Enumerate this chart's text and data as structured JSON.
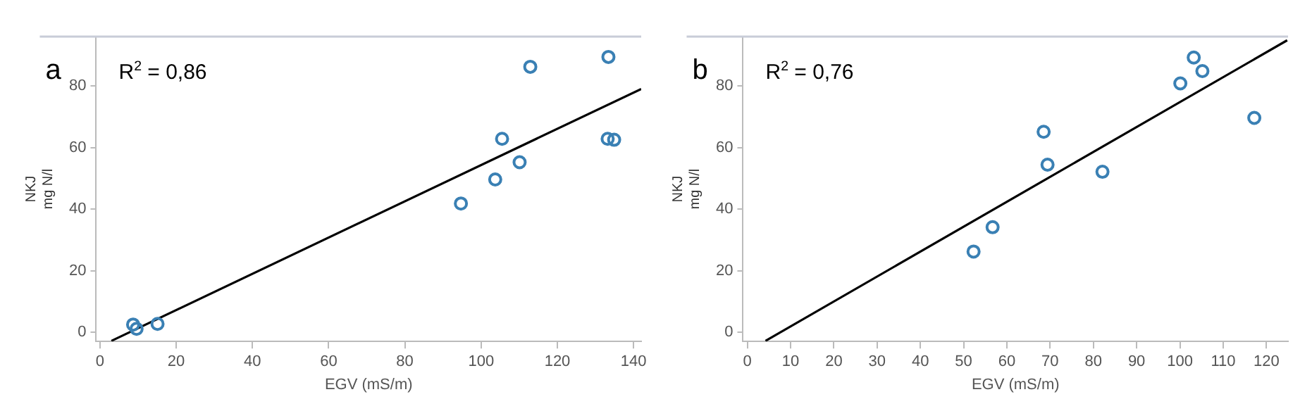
{
  "chart_data": [
    {
      "type": "scatter",
      "annotations": [
        "a",
        "R$^{2}$ = 0,86"
      ],
      "xlabel": "EGV (mS/m)",
      "ylabel": "NKJ\nmg N/l",
      "xlim": [
        -1,
        142
      ],
      "ylim": [
        -3,
        96
      ],
      "xticks": [
        0,
        20,
        40,
        60,
        80,
        100,
        120,
        140
      ],
      "yticks": [
        0,
        20,
        40,
        60,
        80
      ],
      "grid": false,
      "legend": false,
      "series": [
        {
          "marker": "circle",
          "color": "#3a80b4",
          "x": [
            8.7,
            9.6,
            15.1,
            94.7,
            103.7,
            105.5,
            110.1,
            112.9,
            133.4,
            133.2,
            134.9
          ],
          "values": [
            2.5,
            1.1,
            2.7,
            41.8,
            49.6,
            62.8,
            55.2,
            86.2,
            89.4,
            62.8,
            62.5
          ]
        },
        {
          "type": "line",
          "marker": "none",
          "color": "#000000",
          "x": [
            3.0,
            142
          ],
          "values": [
            -2.8,
            79.0
          ]
        }
      ]
    },
    {
      "type": "scatter",
      "annotations": [
        "b",
        "R$^{2}$ = 0,76"
      ],
      "xlabel": "EGV (mS/m)",
      "ylabel": "NKJ\nmg N/l",
      "xlim": [
        -1,
        125
      ],
      "ylim": [
        -3,
        96
      ],
      "xticks": [
        0,
        10,
        20,
        30,
        40,
        50,
        60,
        70,
        80,
        90,
        100,
        110,
        120
      ],
      "yticks": [
        0,
        20,
        40,
        60,
        80
      ],
      "grid": false,
      "legend": false,
      "series": [
        {
          "marker": "circle",
          "color": "#3a80b4",
          "x": [
            52.3,
            56.7,
            68.5,
            69.4,
            82.1,
            100.1,
            103.2,
            105.2,
            117.2
          ],
          "values": [
            26.2,
            34.1,
            65.1,
            54.4,
            52.1,
            80.8,
            89.2,
            84.8,
            69.6
          ]
        },
        {
          "type": "line",
          "marker": "none",
          "color": "#000000",
          "x": [
            4.2,
            124.8
          ],
          "values": [
            -2.8,
            94.8
          ]
        }
      ]
    }
  ]
}
